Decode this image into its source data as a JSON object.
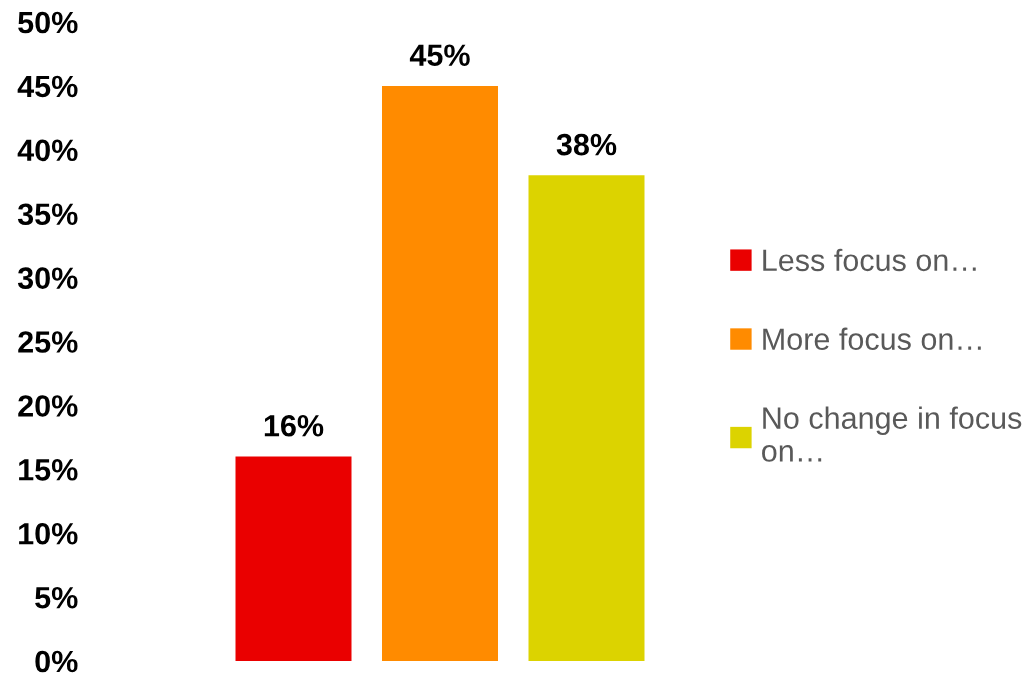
{
  "chart_data": {
    "type": "bar",
    "categories": [
      null
    ],
    "series": [
      {
        "name": "Less focus on…",
        "color": "#ea0000",
        "values": [
          16
        ],
        "value_labels": [
          "16%"
        ]
      },
      {
        "name": "More focus on…",
        "color": "#ff8b00",
        "values": [
          45
        ],
        "value_labels": [
          "45%"
        ]
      },
      {
        "name": "No change in focus on…",
        "color": "#dcd300",
        "values": [
          38
        ],
        "value_labels": [
          "38%"
        ]
      }
    ],
    "ylim": [
      0,
      50
    ],
    "yticks": [
      {
        "value": 0,
        "label": "0%"
      },
      {
        "value": 5,
        "label": "5%"
      },
      {
        "value": 10,
        "label": "10%"
      },
      {
        "value": 15,
        "label": "15%"
      },
      {
        "value": 20,
        "label": "20%"
      },
      {
        "value": 25,
        "label": "25%"
      },
      {
        "value": 30,
        "label": "30%"
      },
      {
        "value": 35,
        "label": "35%"
      },
      {
        "value": 40,
        "label": "40%"
      },
      {
        "value": 45,
        "label": "45%"
      },
      {
        "value": 50,
        "label": "50%"
      }
    ],
    "legend": "right"
  }
}
